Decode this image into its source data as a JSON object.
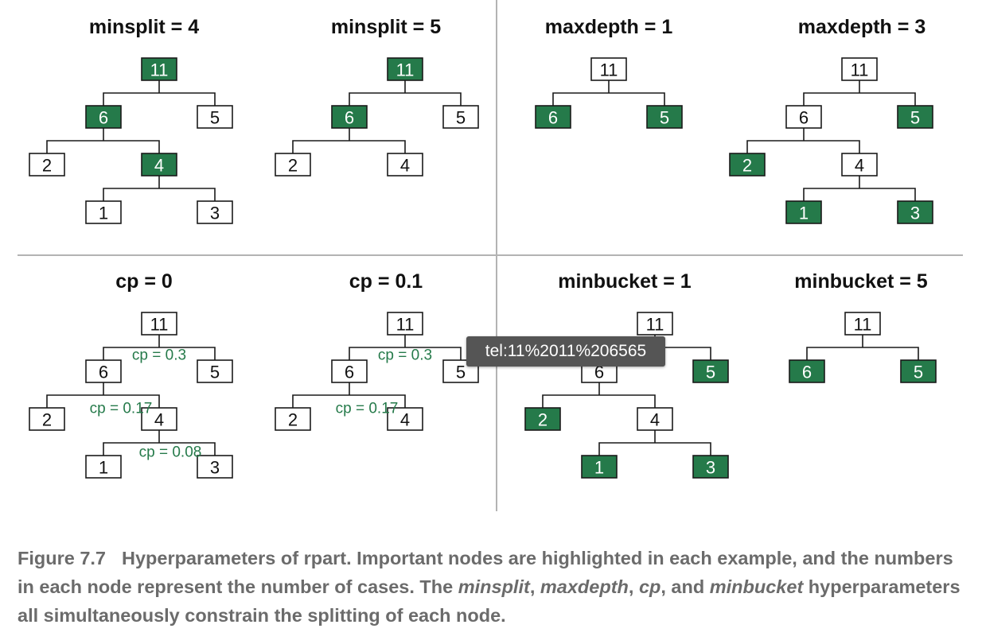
{
  "colors": {
    "highlight": "#257a4a",
    "cp_label": "#257a4a",
    "node_border": "#1a1a1a",
    "caption": "#6b6b6b",
    "tooltip_bg": "#555555"
  },
  "panels": [
    {
      "title": "minsplit = 4",
      "nodes": [
        {
          "id": "a",
          "label": "11",
          "hl": true
        },
        {
          "id": "b",
          "label": "6",
          "hl": true
        },
        {
          "id": "c",
          "label": "5",
          "hl": false
        },
        {
          "id": "d",
          "label": "2",
          "hl": false
        },
        {
          "id": "e",
          "label": "4",
          "hl": true
        },
        {
          "id": "f",
          "label": "1",
          "hl": false
        },
        {
          "id": "g",
          "label": "3",
          "hl": false
        }
      ],
      "edges": [
        [
          "a",
          "b",
          "c"
        ],
        [
          "b",
          "d",
          "e"
        ],
        [
          "e",
          "f",
          "g"
        ]
      ],
      "cp_labels": []
    },
    {
      "title": "minsplit = 5",
      "nodes": [
        {
          "id": "a",
          "label": "11",
          "hl": true
        },
        {
          "id": "b",
          "label": "6",
          "hl": true
        },
        {
          "id": "c",
          "label": "5",
          "hl": false
        },
        {
          "id": "d",
          "label": "2",
          "hl": false
        },
        {
          "id": "e",
          "label": "4",
          "hl": false
        }
      ],
      "edges": [
        [
          "a",
          "b",
          "c"
        ],
        [
          "b",
          "d",
          "e"
        ]
      ],
      "cp_labels": []
    },
    {
      "title": "maxdepth = 1",
      "nodes": [
        {
          "id": "a",
          "label": "11",
          "hl": false
        },
        {
          "id": "b",
          "label": "6",
          "hl": true
        },
        {
          "id": "c",
          "label": "5",
          "hl": true
        }
      ],
      "edges": [
        [
          "a",
          "b",
          "c"
        ]
      ],
      "cp_labels": []
    },
    {
      "title": "maxdepth = 3",
      "nodes": [
        {
          "id": "a",
          "label": "11",
          "hl": false
        },
        {
          "id": "b",
          "label": "6",
          "hl": false
        },
        {
          "id": "c",
          "label": "5",
          "hl": true
        },
        {
          "id": "d",
          "label": "2",
          "hl": true
        },
        {
          "id": "e",
          "label": "4",
          "hl": false
        },
        {
          "id": "f",
          "label": "1",
          "hl": true
        },
        {
          "id": "g",
          "label": "3",
          "hl": true
        }
      ],
      "edges": [
        [
          "a",
          "b",
          "c"
        ],
        [
          "b",
          "d",
          "e"
        ],
        [
          "e",
          "f",
          "g"
        ]
      ],
      "cp_labels": []
    },
    {
      "title": "cp = 0",
      "nodes": [
        {
          "id": "a",
          "label": "11",
          "hl": false
        },
        {
          "id": "b",
          "label": "6",
          "hl": false
        },
        {
          "id": "c",
          "label": "5",
          "hl": false
        },
        {
          "id": "d",
          "label": "2",
          "hl": false
        },
        {
          "id": "e",
          "label": "4",
          "hl": false
        },
        {
          "id": "f",
          "label": "1",
          "hl": false
        },
        {
          "id": "g",
          "label": "3",
          "hl": false
        }
      ],
      "edges": [
        [
          "a",
          "b",
          "c"
        ],
        [
          "b",
          "d",
          "e"
        ],
        [
          "e",
          "f",
          "g"
        ]
      ],
      "cp_labels": [
        "cp = 0.3",
        "cp = 0.17",
        "cp = 0.08"
      ]
    },
    {
      "title": "cp = 0.1",
      "nodes": [
        {
          "id": "a",
          "label": "11",
          "hl": false
        },
        {
          "id": "b",
          "label": "6",
          "hl": false
        },
        {
          "id": "c",
          "label": "5",
          "hl": false
        },
        {
          "id": "d",
          "label": "2",
          "hl": false
        },
        {
          "id": "e",
          "label": "4",
          "hl": false
        }
      ],
      "edges": [
        [
          "a",
          "b",
          "c"
        ],
        [
          "b",
          "d",
          "e"
        ]
      ],
      "cp_labels": [
        "cp = 0.3",
        "cp = 0.17"
      ]
    },
    {
      "title": "minbucket = 1",
      "nodes": [
        {
          "id": "a",
          "label": "11",
          "hl": false
        },
        {
          "id": "b",
          "label": "6",
          "hl": false
        },
        {
          "id": "c",
          "label": "5",
          "hl": true
        },
        {
          "id": "d",
          "label": "2",
          "hl": true
        },
        {
          "id": "e",
          "label": "4",
          "hl": false
        },
        {
          "id": "f",
          "label": "1",
          "hl": true
        },
        {
          "id": "g",
          "label": "3",
          "hl": true
        }
      ],
      "edges": [
        [
          "a",
          "b",
          "c"
        ],
        [
          "b",
          "d",
          "e"
        ],
        [
          "e",
          "f",
          "g"
        ]
      ],
      "cp_labels": []
    },
    {
      "title": "minbucket = 5",
      "nodes": [
        {
          "id": "a",
          "label": "11",
          "hl": false
        },
        {
          "id": "b",
          "label": "6",
          "hl": true
        },
        {
          "id": "c",
          "label": "5",
          "hl": true
        }
      ],
      "edges": [
        [
          "a",
          "b",
          "c"
        ]
      ],
      "cp_labels": []
    }
  ],
  "tooltip": "tel:11%2011%206565",
  "caption": {
    "number": "Figure 7.7",
    "text1": "Hyperparameters of rpart. Important nodes are highlighted in each example, and the numbers in each node represent the number of cases. The ",
    "term1": "minsplit",
    "sep1": ", ",
    "term2": "maxdepth",
    "sep2": ", ",
    "term3": "cp",
    "sep3": ", and ",
    "term4": "minbucket",
    "text2": " hyperparameters all simultaneously constrain the splitting of each node."
  }
}
